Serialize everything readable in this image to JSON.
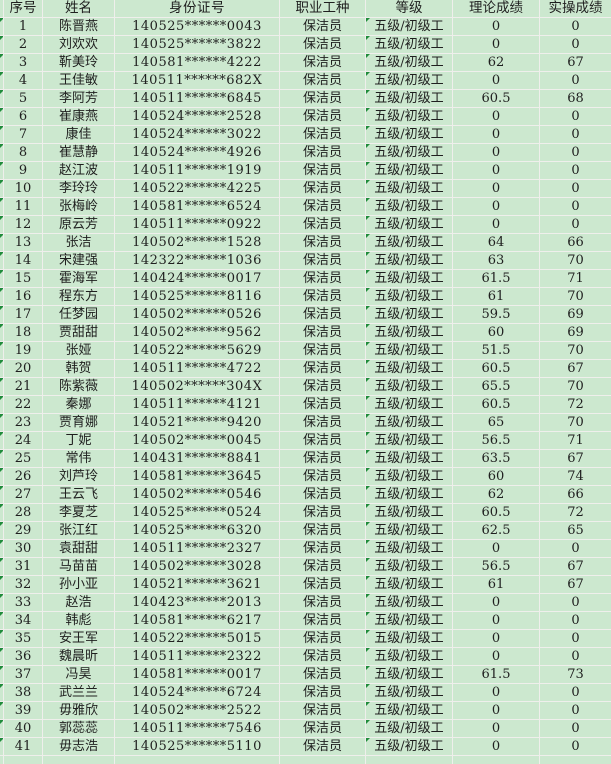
{
  "colors": {
    "cell_background": "#cce8cf",
    "gridline": "#efefec",
    "text": "#1f1f1f",
    "error_triangle_green": "#1f8b3b"
  },
  "icons": {
    "error_triangle": "green corner triangle (number-stored-as-text indicator)"
  },
  "table": {
    "headers": [
      "序号",
      "姓名",
      "身份证号",
      "职业工种",
      "等级",
      "理论成绩",
      "实操成绩"
    ],
    "rows": [
      [
        "1",
        "陈晋燕",
        "140525******0043",
        "保洁员",
        "五级/初级工",
        "0",
        "0"
      ],
      [
        "2",
        "刘欢欢",
        "140525******3822",
        "保洁员",
        "五级/初级工",
        "0",
        "0"
      ],
      [
        "3",
        "靳美玲",
        "140581******4222",
        "保洁员",
        "五级/初级工",
        "62",
        "67"
      ],
      [
        "4",
        "王佳敏",
        "140511******682X",
        "保洁员",
        "五级/初级工",
        "0",
        "0"
      ],
      [
        "5",
        "李阿芳",
        "140511******6845",
        "保洁员",
        "五级/初级工",
        "60.5",
        "68"
      ],
      [
        "6",
        "崔康燕",
        "140524******2528",
        "保洁员",
        "五级/初级工",
        "0",
        "0"
      ],
      [
        "7",
        "康佳",
        "140524******3022",
        "保洁员",
        "五级/初级工",
        "0",
        "0"
      ],
      [
        "8",
        "崔慧静",
        "140524******4926",
        "保洁员",
        "五级/初级工",
        "0",
        "0"
      ],
      [
        "9",
        "赵江波",
        "140511******1919",
        "保洁员",
        "五级/初级工",
        "0",
        "0"
      ],
      [
        "10",
        "李玲玲",
        "140522******4225",
        "保洁员",
        "五级/初级工",
        "0",
        "0"
      ],
      [
        "11",
        "张梅岭",
        "140581******6524",
        "保洁员",
        "五级/初级工",
        "0",
        "0"
      ],
      [
        "12",
        "原云芳",
        "140511******0922",
        "保洁员",
        "五级/初级工",
        "0",
        "0"
      ],
      [
        "13",
        "张洁",
        "140502******1528",
        "保洁员",
        "五级/初级工",
        "64",
        "66"
      ],
      [
        "14",
        "宋建强",
        "142322******1036",
        "保洁员",
        "五级/初级工",
        "63",
        "70"
      ],
      [
        "15",
        "霍海军",
        "140424******0017",
        "保洁员",
        "五级/初级工",
        "61.5",
        "71"
      ],
      [
        "16",
        "程东方",
        "140525******8116",
        "保洁员",
        "五级/初级工",
        "61",
        "70"
      ],
      [
        "17",
        "任梦园",
        "140502******0526",
        "保洁员",
        "五级/初级工",
        "59.5",
        "69"
      ],
      [
        "18",
        "贾甜甜",
        "140502******9562",
        "保洁员",
        "五级/初级工",
        "60",
        "69"
      ],
      [
        "19",
        "张娅",
        "140522******5629",
        "保洁员",
        "五级/初级工",
        "51.5",
        "70"
      ],
      [
        "20",
        "韩贺",
        "140511******4722",
        "保洁员",
        "五级/初级工",
        "60.5",
        "67"
      ],
      [
        "21",
        "陈紫薇",
        "140502******304X",
        "保洁员",
        "五级/初级工",
        "65.5",
        "70"
      ],
      [
        "22",
        "秦娜",
        "140511******4121",
        "保洁员",
        "五级/初级工",
        "60.5",
        "72"
      ],
      [
        "23",
        "贾育娜",
        "140521******9420",
        "保洁员",
        "五级/初级工",
        "65",
        "70"
      ],
      [
        "24",
        "丁妮",
        "140502******0045",
        "保洁员",
        "五级/初级工",
        "56.5",
        "71"
      ],
      [
        "25",
        "常伟",
        "140431******8841",
        "保洁员",
        "五级/初级工",
        "63.5",
        "67"
      ],
      [
        "26",
        "刘芦玲",
        "140581******3645",
        "保洁员",
        "五级/初级工",
        "60",
        "74"
      ],
      [
        "27",
        "王云飞",
        "140502******0546",
        "保洁员",
        "五级/初级工",
        "62",
        "66"
      ],
      [
        "28",
        "李夏芝",
        "140525******0524",
        "保洁员",
        "五级/初级工",
        "60.5",
        "72"
      ],
      [
        "29",
        "张江红",
        "140525******6320",
        "保洁员",
        "五级/初级工",
        "62.5",
        "65"
      ],
      [
        "30",
        "袁甜甜",
        "140511******2327",
        "保洁员",
        "五级/初级工",
        "0",
        "0"
      ],
      [
        "31",
        "马苗苗",
        "140502******3028",
        "保洁员",
        "五级/初级工",
        "56.5",
        "67"
      ],
      [
        "32",
        "孙小亚",
        "140521******3621",
        "保洁员",
        "五级/初级工",
        "61",
        "67"
      ],
      [
        "33",
        "赵浩",
        "140423******2013",
        "保洁员",
        "五级/初级工",
        "0",
        "0"
      ],
      [
        "34",
        "韩彪",
        "140581******6217",
        "保洁员",
        "五级/初级工",
        "0",
        "0"
      ],
      [
        "35",
        "安王军",
        "140522******5015",
        "保洁员",
        "五级/初级工",
        "0",
        "0"
      ],
      [
        "36",
        "魏晨昕",
        "140511******2322",
        "保洁员",
        "五级/初级工",
        "0",
        "0"
      ],
      [
        "37",
        "冯昊",
        "140581******0017",
        "保洁员",
        "五级/初级工",
        "61.5",
        "73"
      ],
      [
        "38",
        "武兰兰",
        "140524******6724",
        "保洁员",
        "五级/初级工",
        "0",
        "0"
      ],
      [
        "39",
        "毋雅欣",
        "140502******2522",
        "保洁员",
        "五级/初级工",
        "0",
        "0"
      ],
      [
        "40",
        "郭蕊蕊",
        "140511******7546",
        "保洁员",
        "五级/初级工",
        "0",
        "0"
      ],
      [
        "41",
        "毋志浩",
        "140525******5110",
        "保洁员",
        "五级/初级工",
        "0",
        "0"
      ]
    ]
  }
}
